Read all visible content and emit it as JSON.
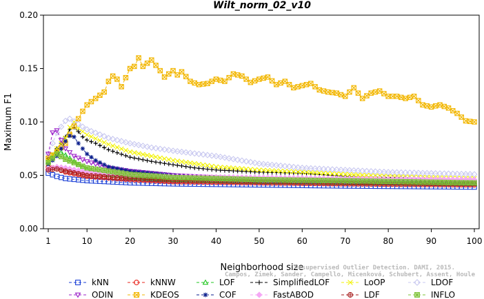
{
  "chart_data": {
    "type": "line",
    "title": "Wilt_norm_02_v10",
    "xlabel": "Neighborhood size",
    "ylabel": "Maximum F1",
    "xlim": [
      1,
      100
    ],
    "ylim": [
      0,
      0.2
    ],
    "xticks": [
      "1",
      "10",
      "20",
      "30",
      "40",
      "50",
      "60",
      "70",
      "80",
      "90",
      "100"
    ],
    "yticks": [
      "0.00",
      "0.05",
      "0.10",
      "0.15",
      "0.20"
    ],
    "grid": false,
    "legend_position": "bottom",
    "credit": [
      "Campos, Zimek, Sander, Campello, Micenková, Schubert, Assent, Houle",
      "Unsupervised Outlier Detection. DAMI, 2015."
    ],
    "series": [
      {
        "name": "kNN",
        "color": "#1a3fd6",
        "marker": "square",
        "points": [
          [
            1,
            0.052
          ],
          [
            3,
            0.049
          ],
          [
            5,
            0.047
          ],
          [
            10,
            0.045
          ],
          [
            20,
            0.043
          ],
          [
            30,
            0.042
          ],
          [
            50,
            0.041
          ],
          [
            70,
            0.04
          ],
          [
            100,
            0.039
          ]
        ]
      },
      {
        "name": "kNNW",
        "color": "#e8241c",
        "marker": "circle",
        "points": [
          [
            1,
            0.058
          ],
          [
            3,
            0.056
          ],
          [
            5,
            0.053
          ],
          [
            10,
            0.049
          ],
          [
            20,
            0.046
          ],
          [
            30,
            0.044
          ],
          [
            50,
            0.043
          ],
          [
            70,
            0.042
          ],
          [
            100,
            0.041
          ]
        ]
      },
      {
        "name": "LOF",
        "color": "#22c722",
        "marker": "triangle-up",
        "points": [
          [
            1,
            0.063
          ],
          [
            3,
            0.074
          ],
          [
            5,
            0.069
          ],
          [
            8,
            0.06
          ],
          [
            10,
            0.056
          ],
          [
            15,
            0.051
          ],
          [
            20,
            0.048
          ],
          [
            30,
            0.046
          ],
          [
            50,
            0.044
          ],
          [
            70,
            0.043
          ],
          [
            100,
            0.042
          ]
        ]
      },
      {
        "name": "SimplifiedLOF",
        "color": "#000000",
        "marker": "plus",
        "points": [
          [
            1,
            0.066
          ],
          [
            2,
            0.068
          ],
          [
            3,
            0.075
          ],
          [
            4,
            0.08
          ],
          [
            5,
            0.086
          ],
          [
            6,
            0.093
          ],
          [
            7,
            0.095
          ],
          [
            8,
            0.091
          ],
          [
            9,
            0.086
          ],
          [
            10,
            0.083
          ],
          [
            12,
            0.08
          ],
          [
            15,
            0.074
          ],
          [
            20,
            0.067
          ],
          [
            25,
            0.063
          ],
          [
            30,
            0.06
          ],
          [
            35,
            0.057
          ],
          [
            40,
            0.055
          ],
          [
            50,
            0.053
          ],
          [
            60,
            0.052
          ],
          [
            70,
            0.049
          ],
          [
            80,
            0.048
          ],
          [
            90,
            0.047
          ],
          [
            100,
            0.046
          ]
        ]
      },
      {
        "name": "LoOP",
        "color": "#f2f200",
        "marker": "cross",
        "points": [
          [
            1,
            0.064
          ],
          [
            3,
            0.075
          ],
          [
            5,
            0.085
          ],
          [
            6,
            0.095
          ],
          [
            7,
            0.1
          ],
          [
            8,
            0.094
          ],
          [
            10,
            0.088
          ],
          [
            15,
            0.079
          ],
          [
            20,
            0.072
          ],
          [
            25,
            0.068
          ],
          [
            30,
            0.064
          ],
          [
            40,
            0.058
          ],
          [
            50,
            0.055
          ],
          [
            60,
            0.053
          ],
          [
            70,
            0.051
          ],
          [
            80,
            0.049
          ],
          [
            90,
            0.048
          ],
          [
            100,
            0.047
          ]
        ]
      },
      {
        "name": "LDOF",
        "color": "#c8c8f0",
        "marker": "diamond",
        "points": [
          [
            1,
            0.07
          ],
          [
            3,
            0.09
          ],
          [
            5,
            0.101
          ],
          [
            6,
            0.103
          ],
          [
            8,
            0.098
          ],
          [
            10,
            0.093
          ],
          [
            15,
            0.085
          ],
          [
            20,
            0.08
          ],
          [
            25,
            0.076
          ],
          [
            30,
            0.073
          ],
          [
            40,
            0.068
          ],
          [
            50,
            0.061
          ],
          [
            60,
            0.057
          ],
          [
            70,
            0.055
          ],
          [
            80,
            0.053
          ],
          [
            90,
            0.052
          ],
          [
            100,
            0.051
          ]
        ]
      },
      {
        "name": "ODIN",
        "color": "#9b20c8",
        "marker": "triangle-down",
        "points": [
          [
            1,
            0.07
          ],
          [
            2,
            0.09
          ],
          [
            3,
            0.092
          ],
          [
            4,
            0.083
          ],
          [
            5,
            0.075
          ],
          [
            7,
            0.068
          ],
          [
            10,
            0.063
          ],
          [
            15,
            0.057
          ],
          [
            20,
            0.054
          ],
          [
            30,
            0.05
          ],
          [
            40,
            0.048
          ],
          [
            50,
            0.046
          ],
          [
            70,
            0.045
          ],
          [
            100,
            0.044
          ]
        ]
      },
      {
        "name": "KDEOS",
        "color": "#f2b600",
        "marker": "square-x",
        "points": [
          [
            1,
            0.066
          ],
          [
            3,
            0.072
          ],
          [
            5,
            0.08
          ],
          [
            7,
            0.096
          ],
          [
            9,
            0.11
          ],
          [
            10,
            0.116
          ],
          [
            12,
            0.122
          ],
          [
            14,
            0.128
          ],
          [
            15,
            0.138
          ],
          [
            16,
            0.143
          ],
          [
            17,
            0.14
          ],
          [
            18,
            0.133
          ],
          [
            20,
            0.15
          ],
          [
            21,
            0.152
          ],
          [
            22,
            0.16
          ],
          [
            23,
            0.152
          ],
          [
            25,
            0.158
          ],
          [
            27,
            0.148
          ],
          [
            28,
            0.142
          ],
          [
            30,
            0.148
          ],
          [
            31,
            0.144
          ],
          [
            32,
            0.147
          ],
          [
            34,
            0.138
          ],
          [
            36,
            0.135
          ],
          [
            38,
            0.136
          ],
          [
            40,
            0.14
          ],
          [
            42,
            0.138
          ],
          [
            44,
            0.145
          ],
          [
            46,
            0.143
          ],
          [
            48,
            0.137
          ],
          [
            50,
            0.14
          ],
          [
            52,
            0.142
          ],
          [
            54,
            0.135
          ],
          [
            56,
            0.138
          ],
          [
            58,
            0.132
          ],
          [
            60,
            0.134
          ],
          [
            62,
            0.136
          ],
          [
            64,
            0.13
          ],
          [
            66,
            0.128
          ],
          [
            68,
            0.127
          ],
          [
            70,
            0.124
          ],
          [
            72,
            0.132
          ],
          [
            74,
            0.122
          ],
          [
            76,
            0.127
          ],
          [
            78,
            0.129
          ],
          [
            80,
            0.124
          ],
          [
            82,
            0.124
          ],
          [
            84,
            0.122
          ],
          [
            86,
            0.124
          ],
          [
            88,
            0.116
          ],
          [
            90,
            0.114
          ],
          [
            92,
            0.116
          ],
          [
            94,
            0.113
          ],
          [
            96,
            0.108
          ],
          [
            98,
            0.101
          ],
          [
            100,
            0.1
          ]
        ]
      },
      {
        "name": "COF",
        "color": "#0a1e8c",
        "marker": "asterisk",
        "points": [
          [
            1,
            0.06
          ],
          [
            2,
            0.064
          ],
          [
            3,
            0.068
          ],
          [
            4,
            0.075
          ],
          [
            5,
            0.082
          ],
          [
            6,
            0.087
          ],
          [
            7,
            0.086
          ],
          [
            8,
            0.08
          ],
          [
            9,
            0.075
          ],
          [
            10,
            0.07
          ],
          [
            12,
            0.064
          ],
          [
            15,
            0.058
          ],
          [
            20,
            0.054
          ],
          [
            30,
            0.05
          ],
          [
            40,
            0.047
          ],
          [
            50,
            0.046
          ],
          [
            70,
            0.045
          ],
          [
            100,
            0.044
          ]
        ]
      },
      {
        "name": "FastABOD",
        "color": "#f5a8f5",
        "marker": "diamond-filled",
        "points": [
          [
            1,
            0.056
          ],
          [
            3,
            0.058
          ],
          [
            5,
            0.057
          ],
          [
            10,
            0.053
          ],
          [
            20,
            0.05
          ],
          [
            30,
            0.049
          ],
          [
            50,
            0.048
          ],
          [
            70,
            0.047
          ],
          [
            100,
            0.046
          ]
        ]
      },
      {
        "name": "LDF",
        "color": "#a61c1c",
        "marker": "circle-plus",
        "points": [
          [
            1,
            0.055
          ],
          [
            3,
            0.056
          ],
          [
            5,
            0.054
          ],
          [
            10,
            0.05
          ],
          [
            20,
            0.047
          ],
          [
            30,
            0.045
          ],
          [
            50,
            0.044
          ],
          [
            70,
            0.043
          ],
          [
            100,
            0.042
          ]
        ]
      },
      {
        "name": "INFLO",
        "color": "#7cc236",
        "marker": "square-star",
        "points": [
          [
            1,
            0.062
          ],
          [
            3,
            0.07
          ],
          [
            5,
            0.065
          ],
          [
            10,
            0.057
          ],
          [
            20,
            0.051
          ],
          [
            30,
            0.048
          ],
          [
            50,
            0.046
          ],
          [
            70,
            0.045
          ],
          [
            100,
            0.043
          ]
        ]
      }
    ]
  }
}
